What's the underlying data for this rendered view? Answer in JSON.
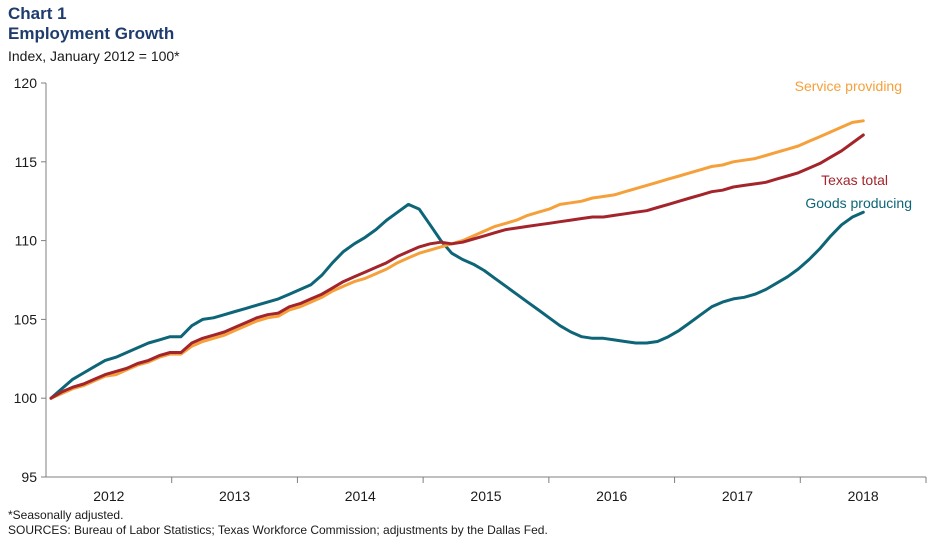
{
  "header": {
    "chart_label": "Chart 1",
    "title": "Employment Growth",
    "subtitle": "Index, January 2012 = 100*"
  },
  "footnotes": {
    "note": "*Seasonally adjusted.",
    "sources": "SOURCES: Bureau of Labor Statistics; Texas Workforce Commission; adjustments by the Dallas Fed."
  },
  "chart_data": {
    "type": "line",
    "title": "Employment Growth",
    "ylabel": "Index, January 2012 = 100*",
    "ylim": [
      95,
      120
    ],
    "yticks": [
      95,
      100,
      105,
      110,
      115,
      120
    ],
    "xlabel": "",
    "xticks": [
      "2012",
      "2013",
      "2014",
      "2015",
      "2016",
      "2017",
      "2018"
    ],
    "grid": false,
    "colors": {
      "service": "#f5a03a",
      "texas": "#a3252b",
      "goods": "#0d6577"
    },
    "series": [
      {
        "name": "Service providing",
        "color": "#f5a03a",
        "values": [
          100,
          100.3,
          100.6,
          100.8,
          101.1,
          101.4,
          101.5,
          101.8,
          102.1,
          102.3,
          102.6,
          102.8,
          102.8,
          103.3,
          103.6,
          103.8,
          104.0,
          104.3,
          104.6,
          104.9,
          105.1,
          105.2,
          105.6,
          105.8,
          106.1,
          106.4,
          106.8,
          107.1,
          107.4,
          107.6,
          107.9,
          108.2,
          108.6,
          108.9,
          109.2,
          109.4,
          109.6,
          109.8,
          110.0,
          110.3,
          110.6,
          110.9,
          111.1,
          111.3,
          111.6,
          111.8,
          112.0,
          112.3,
          112.4,
          112.5,
          112.7,
          112.8,
          112.9,
          113.1,
          113.3,
          113.5,
          113.7,
          113.9,
          114.1,
          114.3,
          114.5,
          114.7,
          114.8,
          115.0,
          115.1,
          115.2,
          115.4,
          115.6,
          115.8,
          116.0,
          116.3,
          116.6,
          116.9,
          117.2,
          117.5,
          117.6
        ]
      },
      {
        "name": "Texas total",
        "color": "#a3252b",
        "values": [
          100,
          100.4,
          100.7,
          100.9,
          101.2,
          101.5,
          101.7,
          101.9,
          102.2,
          102.4,
          102.7,
          102.9,
          102.9,
          103.5,
          103.8,
          104.0,
          104.2,
          104.5,
          104.8,
          105.1,
          105.3,
          105.4,
          105.8,
          106.0,
          106.3,
          106.6,
          107.0,
          107.4,
          107.7,
          108.0,
          108.3,
          108.6,
          109.0,
          109.3,
          109.6,
          109.8,
          109.9,
          109.8,
          109.9,
          110.1,
          110.3,
          110.5,
          110.7,
          110.8,
          110.9,
          111.0,
          111.1,
          111.2,
          111.3,
          111.4,
          111.5,
          111.5,
          111.6,
          111.7,
          111.8,
          111.9,
          112.1,
          112.3,
          112.5,
          112.7,
          112.9,
          113.1,
          113.2,
          113.4,
          113.5,
          113.6,
          113.7,
          113.9,
          114.1,
          114.3,
          114.6,
          114.9,
          115.3,
          115.7,
          116.2,
          116.7
        ]
      },
      {
        "name": "Goods producing",
        "color": "#0d6577",
        "values": [
          100,
          100.6,
          101.2,
          101.6,
          102.0,
          102.4,
          102.6,
          102.9,
          103.2,
          103.5,
          103.7,
          103.9,
          103.9,
          104.6,
          105.0,
          105.1,
          105.3,
          105.5,
          105.7,
          105.9,
          106.1,
          106.3,
          106.6,
          106.9,
          107.2,
          107.8,
          108.6,
          109.3,
          109.8,
          110.2,
          110.7,
          111.3,
          111.8,
          112.3,
          112.0,
          111.0,
          110.0,
          109.2,
          108.8,
          108.5,
          108.1,
          107.6,
          107.1,
          106.6,
          106.1,
          105.6,
          105.1,
          104.6,
          104.2,
          103.9,
          103.8,
          103.8,
          103.7,
          103.6,
          103.5,
          103.5,
          103.6,
          103.9,
          104.3,
          104.8,
          105.3,
          105.8,
          106.1,
          106.3,
          106.4,
          106.6,
          106.9,
          107.3,
          107.7,
          108.2,
          108.8,
          109.5,
          110.3,
          111.0,
          111.5,
          111.8
        ]
      }
    ],
    "series_label_text": {
      "service": "Service providing",
      "texas": "Texas total",
      "goods": "Goods producing"
    }
  }
}
